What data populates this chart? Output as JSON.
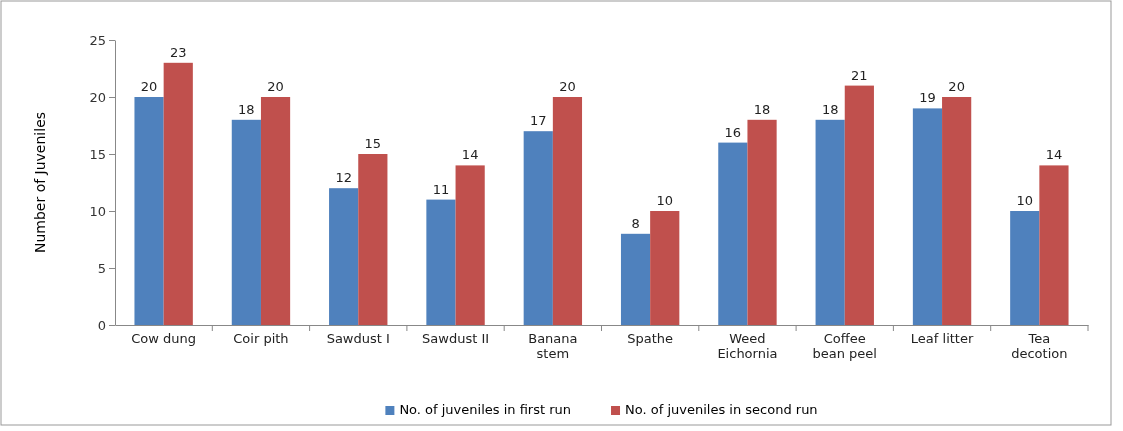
{
  "chart_data": {
    "type": "bar",
    "ylabel": "Number of Juveniles",
    "categories": [
      "Cow dung",
      "Coir pith",
      "Sawdust I",
      "Sawdust II",
      "Banana stem",
      "Spathe",
      "Weed Eichornia",
      "Coffee bean peel",
      "Leaf litter",
      "Tea decotion"
    ],
    "series": [
      {
        "name": "No. of juveniles in first run",
        "color": "#4f81bd",
        "values": [
          20,
          18,
          12,
          11,
          17,
          8,
          16,
          18,
          19,
          10
        ]
      },
      {
        "name": "No. of juveniles in second run",
        "color": "#c0504d",
        "values": [
          23,
          20,
          15,
          14,
          20,
          10,
          18,
          21,
          20,
          14
        ]
      }
    ],
    "ylim": [
      0,
      25
    ],
    "yticks": [
      0,
      5,
      10,
      15,
      20,
      25
    ],
    "grid": false,
    "legend": "bottom",
    "data_labels": true
  }
}
